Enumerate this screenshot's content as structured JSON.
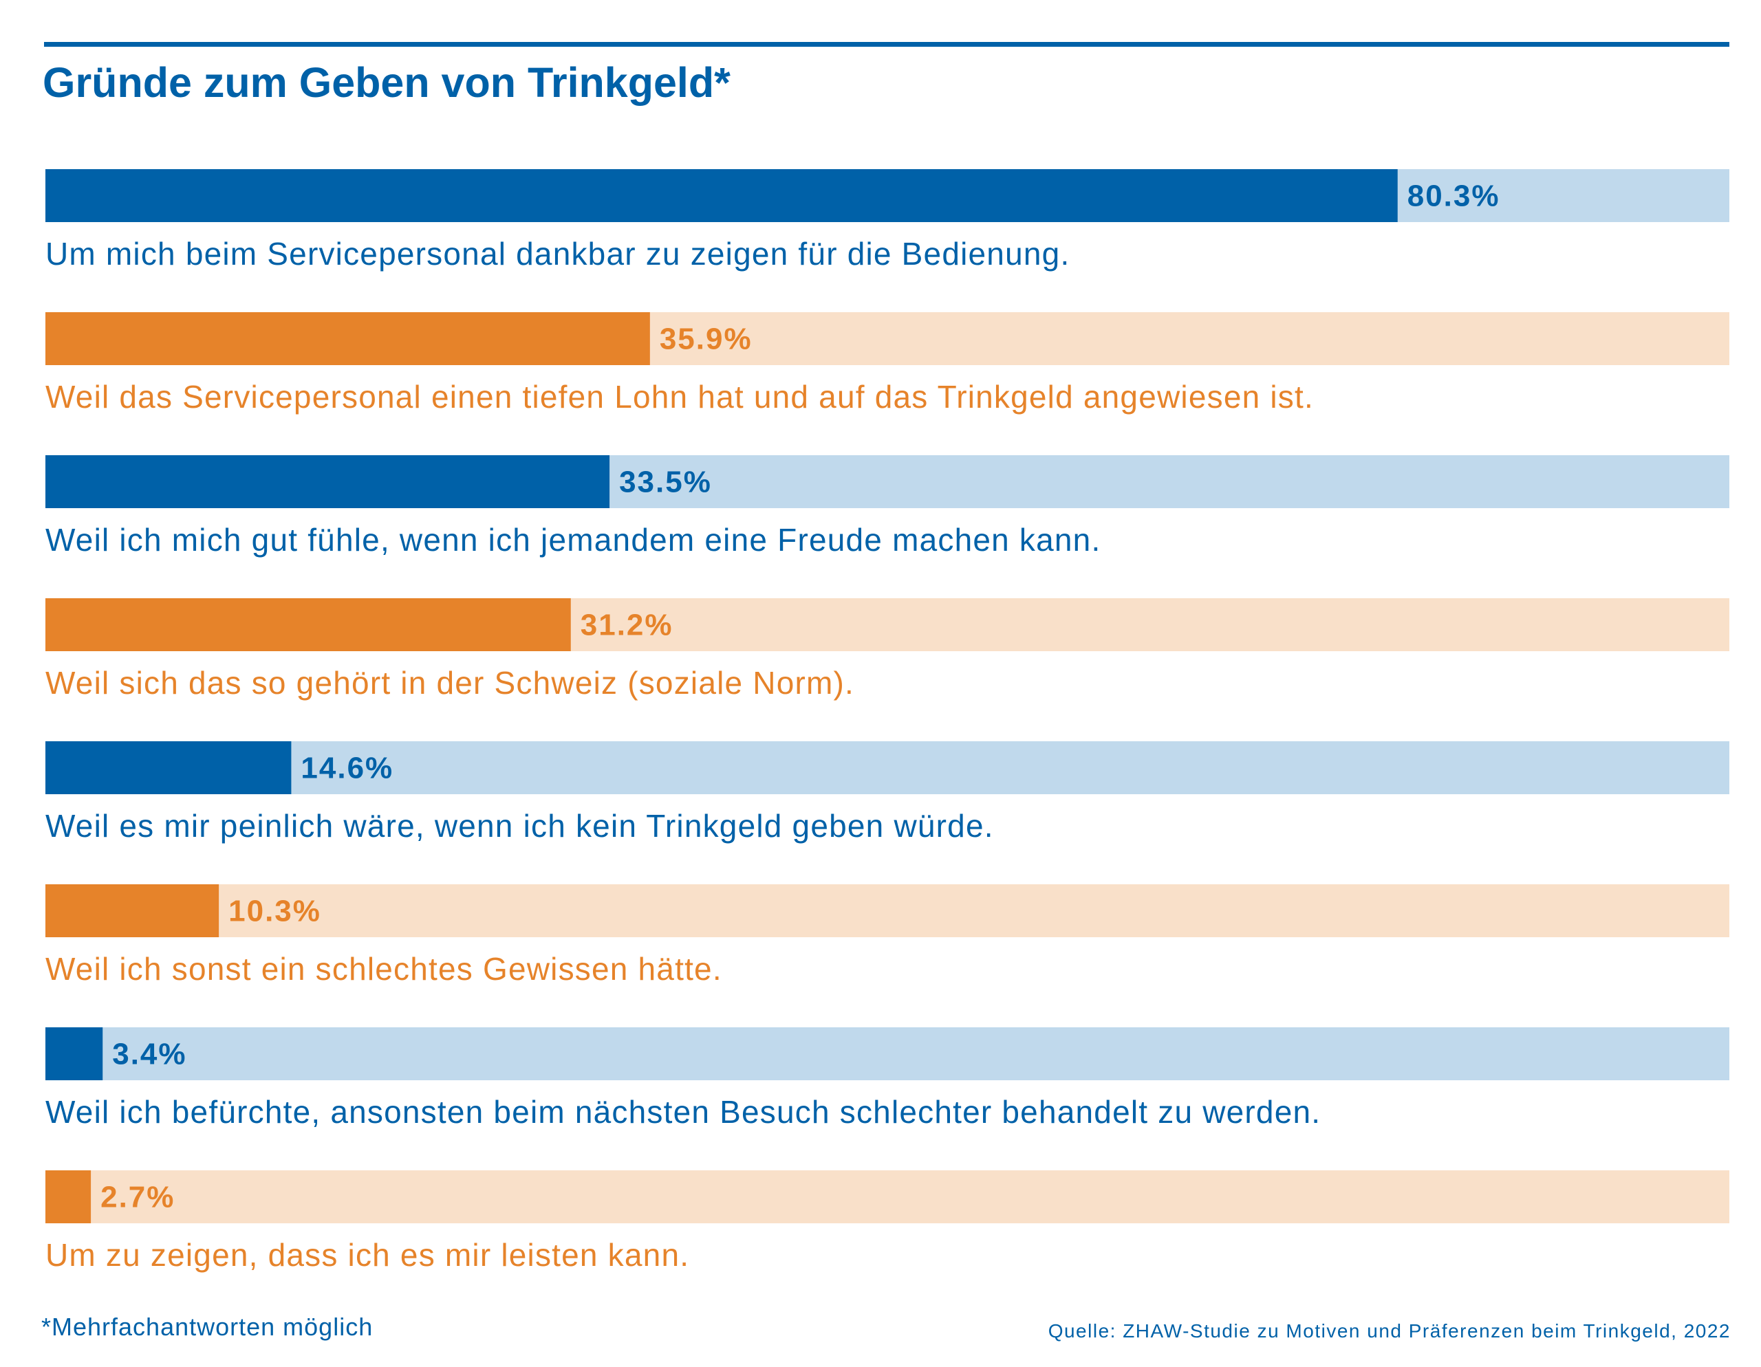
{
  "title": "Gründe zum Geben von Trinkgeld*",
  "footnote": "*Mehrfachantworten möglich",
  "source": "Quelle: ZHAW-Studie zu Motiven und Präferenzen beim Trinkgeld, 2022",
  "colors": {
    "blue": "#0061a8",
    "blue_light": "#c0d9ec",
    "orange": "#e6832a",
    "orange_light": "#f9e0c9"
  },
  "chart_data": {
    "type": "bar",
    "orientation": "horizontal",
    "xlim": [
      0,
      100
    ],
    "unit": "%",
    "grid": false,
    "categories": [
      "Um mich beim Servicepersonal dankbar zu zeigen für die Bedienung.",
      "Weil das Servicepersonal einen tiefen Lohn hat und auf das Trinkgeld angewiesen ist.",
      "Weil ich mich gut fühle, wenn ich jemandem eine Freude machen kann.",
      "Weil sich das so gehört in der Schweiz (soziale Norm).",
      "Weil es mir peinlich wäre, wenn ich kein Trinkgeld geben würde.",
      "Weil ich sonst ein schlechtes Gewissen hätte.",
      "Weil ich befürchte, ansonsten beim nächsten Besuch schlechter behandelt zu werden.",
      "Um zu zeigen, dass ich es mir leisten kann."
    ],
    "values": [
      80.3,
      35.9,
      33.5,
      31.2,
      14.6,
      10.3,
      3.4,
      2.7
    ],
    "value_labels": [
      "80.3%",
      "35.9%",
      "33.5%",
      "31.2%",
      "14.6%",
      "10.3%",
      "3.4%",
      "2.7%"
    ],
    "bar_colors": [
      "blue",
      "orange",
      "blue",
      "orange",
      "blue",
      "orange",
      "blue",
      "orange"
    ]
  }
}
